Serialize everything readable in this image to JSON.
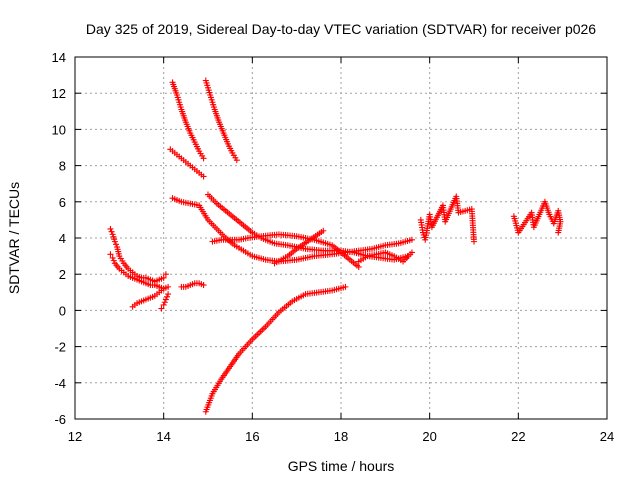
{
  "chart_data": {
    "type": "scatter",
    "title": "Day 325 of 2019, Sidereal Day-to-day VTEC variation (SDTVAR) for receiver p026",
    "xlabel": "GPS time / hours",
    "ylabel": "SDTVAR / TECUs",
    "xlim": [
      12,
      24
    ],
    "ylim": [
      -6,
      14
    ],
    "xticks": [
      12,
      14,
      16,
      18,
      20,
      22,
      24
    ],
    "yticks": [
      -6,
      -4,
      -2,
      0,
      2,
      4,
      6,
      8,
      10,
      12,
      14
    ],
    "xtick_labels": [
      "12",
      "14",
      "16",
      "18",
      "20",
      "22",
      "24"
    ],
    "ytick_labels": [
      "-6",
      "-4",
      "-2",
      "0",
      "2",
      "4",
      "6",
      "8",
      "10",
      "12",
      "14"
    ],
    "grid": true,
    "legend": "none",
    "marker": "+",
    "color": "#ff0000",
    "series": [
      {
        "x": [
          12.8,
          12.85,
          12.9,
          12.95,
          13.0,
          13.1,
          13.2,
          13.3,
          13.4,
          13.5,
          13.6,
          13.7,
          13.8,
          13.9,
          14.0,
          14.05
        ],
        "y": [
          4.5,
          4.2,
          3.8,
          3.5,
          3.0,
          2.6,
          2.3,
          2.1,
          1.9,
          1.8,
          1.8,
          1.7,
          1.6,
          1.7,
          1.8,
          2.0
        ]
      },
      {
        "x": [
          12.8,
          12.85,
          12.9,
          13.0,
          13.1,
          13.2,
          13.3,
          13.4,
          13.5,
          13.6,
          13.7,
          13.8,
          13.9,
          14.0
        ],
        "y": [
          3.1,
          2.9,
          2.6,
          2.3,
          2.1,
          1.9,
          1.8,
          1.7,
          1.6,
          1.5,
          1.4,
          1.4,
          1.3,
          1.2
        ]
      },
      {
        "x": [
          13.3,
          13.4,
          13.5,
          13.6,
          13.7,
          13.8,
          13.9,
          14.0,
          14.1
        ],
        "y": [
          0.2,
          0.4,
          0.5,
          0.6,
          0.7,
          0.8,
          1.0,
          1.2,
          1.3
        ]
      },
      {
        "x": [
          13.95,
          14.0,
          14.05,
          14.1
        ],
        "y": [
          0.1,
          0.3,
          0.6,
          0.9
        ]
      },
      {
        "x": [
          14.4,
          14.5,
          14.6,
          14.7,
          14.8,
          14.9
        ],
        "y": [
          1.3,
          1.3,
          1.4,
          1.5,
          1.5,
          1.4
        ]
      },
      {
        "x": [
          14.2,
          14.3,
          14.4,
          14.5,
          14.6,
          14.7,
          14.8,
          14.9
        ],
        "y": [
          12.6,
          11.9,
          11.1,
          10.4,
          9.8,
          9.3,
          8.8,
          8.4
        ]
      },
      {
        "x": [
          14.95,
          15.05,
          15.15,
          15.25,
          15.35,
          15.45,
          15.55,
          15.65
        ],
        "y": [
          12.7,
          11.9,
          11.1,
          10.4,
          9.8,
          9.2,
          8.7,
          8.3
        ]
      },
      {
        "x": [
          14.15,
          14.3,
          14.45,
          14.6,
          14.75,
          14.9
        ],
        "y": [
          8.9,
          8.6,
          8.3,
          8.0,
          7.7,
          7.4
        ]
      },
      {
        "x": [
          14.2,
          14.4,
          14.6,
          14.8,
          15.0,
          15.2,
          15.4,
          15.6,
          15.8,
          16.0,
          16.3,
          16.6,
          17.0,
          17.4,
          17.8,
          18.1,
          18.4,
          18.7,
          19.0,
          19.3,
          19.6
        ],
        "y": [
          6.2,
          6.0,
          5.9,
          5.8,
          5.0,
          4.5,
          4.0,
          3.6,
          3.3,
          3.0,
          2.8,
          2.7,
          2.8,
          3.0,
          3.1,
          3.2,
          3.3,
          3.4,
          3.6,
          3.7,
          3.9
        ]
      },
      {
        "x": [
          15.0,
          15.2,
          15.4,
          15.6,
          15.8,
          16.0,
          16.2,
          16.5,
          16.8,
          17.2,
          17.6,
          18.0,
          18.3,
          18.6,
          18.9,
          19.2,
          19.5
        ],
        "y": [
          6.4,
          5.9,
          5.5,
          5.1,
          4.7,
          4.3,
          4.0,
          3.7,
          3.6,
          3.4,
          3.3,
          3.3,
          3.2,
          3.0,
          2.9,
          2.8,
          3.0
        ]
      },
      {
        "x": [
          15.1,
          15.3,
          15.5,
          15.7,
          15.9,
          16.2,
          16.6,
          17.0,
          17.4,
          17.8,
          18.0,
          18.2,
          18.4
        ],
        "y": [
          3.8,
          3.9,
          3.9,
          3.9,
          4.0,
          4.1,
          4.2,
          4.1,
          3.9,
          3.6,
          3.2,
          2.8,
          2.4
        ]
      },
      {
        "x": [
          16.5,
          16.8,
          17.0,
          17.3,
          17.6
        ],
        "y": [
          2.6,
          3.0,
          3.4,
          3.9,
          4.4
        ]
      },
      {
        "x": [
          18.4,
          18.6,
          18.8,
          19.0,
          19.2,
          19.4,
          19.6
        ],
        "y": [
          2.7,
          3.0,
          3.1,
          3.2,
          3.0,
          2.7,
          3.2
        ]
      },
      {
        "x": [
          14.95,
          15.1,
          15.3,
          15.5,
          15.7,
          16.0,
          16.3,
          16.6,
          16.9,
          17.2,
          17.5,
          17.8,
          18.1
        ],
        "y": [
          -5.6,
          -4.6,
          -3.8,
          -3.1,
          -2.4,
          -1.6,
          -0.9,
          -0.1,
          0.5,
          0.9,
          1.0,
          1.1,
          1.3
        ]
      },
      {
        "x": [
          19.8,
          19.85,
          19.9,
          20.0,
          20.05,
          20.3,
          20.35,
          20.6,
          20.65,
          20.95,
          21.0
        ],
        "y": [
          5.0,
          4.3,
          3.9,
          5.3,
          4.6,
          5.8,
          4.9,
          6.3,
          5.4,
          5.6,
          3.8
        ]
      },
      {
        "x": [
          21.9,
          22.0,
          22.3,
          22.35,
          22.6,
          22.7,
          22.8,
          22.9,
          22.95,
          22.9
        ],
        "y": [
          5.2,
          4.3,
          5.4,
          4.6,
          6.0,
          5.3,
          4.8,
          5.5,
          4.9,
          4.3
        ]
      }
    ]
  }
}
